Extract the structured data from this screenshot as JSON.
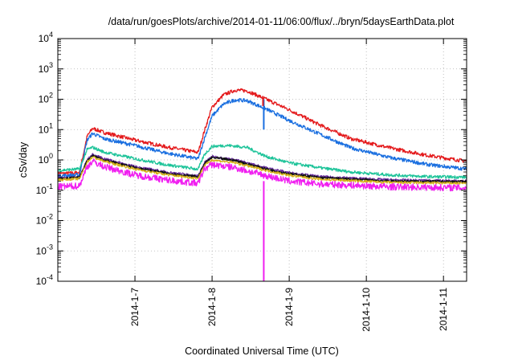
{
  "chart_data": {
    "type": "line",
    "title": "/data/run/goesPlots/archive/2014-01-11/06:00/flux/../bryn/5daysEarthData.plot",
    "xlabel": "Coordinated Universal Time (UTC)",
    "ylabel": "cSv/day",
    "yscale": "log",
    "ylim": [
      0.0001,
      10000
    ],
    "xlim_days": [
      6.0,
      11.3
    ],
    "x_ticks": [
      {
        "day": 7,
        "label": "2014-1-7"
      },
      {
        "day": 8,
        "label": "2014-1-8"
      },
      {
        "day": 9,
        "label": "2014-1-9"
      },
      {
        "day": 10,
        "label": "2014-1-10"
      },
      {
        "day": 11,
        "label": "2014-1-11"
      }
    ],
    "y_ticks": [
      {
        "value": 0.0001,
        "base": "10",
        "exp": "-4"
      },
      {
        "value": 0.001,
        "base": "10",
        "exp": "-3"
      },
      {
        "value": 0.01,
        "base": "10",
        "exp": "-2"
      },
      {
        "value": 0.1,
        "base": "10",
        "exp": "-1"
      },
      {
        "value": 1,
        "base": "10",
        "exp": "0"
      },
      {
        "value": 10,
        "base": "10",
        "exp": "1"
      },
      {
        "value": 100,
        "base": "10",
        "exp": "2"
      },
      {
        "value": 1000,
        "base": "10",
        "exp": "3"
      },
      {
        "value": 10000,
        "base": "10",
        "exp": "4"
      }
    ],
    "grid": true,
    "legend": "none",
    "series": [
      {
        "color": "#e41a1c",
        "noise": 0.06,
        "points": [
          [
            6.0,
            0.35
          ],
          [
            6.28,
            0.38
          ],
          [
            6.38,
            6
          ],
          [
            6.45,
            11
          ],
          [
            6.6,
            8
          ],
          [
            7.0,
            4.5
          ],
          [
            7.4,
            2.7
          ],
          [
            7.8,
            1.8
          ],
          [
            7.82,
            1.8
          ],
          [
            7.9,
            9
          ],
          [
            8.0,
            55
          ],
          [
            8.15,
            140
          ],
          [
            8.3,
            200
          ],
          [
            8.45,
            190
          ],
          [
            8.7,
            100
          ],
          [
            9.0,
            45
          ],
          [
            9.4,
            14
          ],
          [
            9.8,
            5
          ],
          [
            10.3,
            2.5
          ],
          [
            10.8,
            1.4
          ],
          [
            11.3,
            0.9
          ]
        ]
      },
      {
        "color": "#1a6fe0",
        "noise": 0.06,
        "points": [
          [
            6.0,
            0.3
          ],
          [
            6.28,
            0.32
          ],
          [
            6.38,
            4.5
          ],
          [
            6.45,
            7.5
          ],
          [
            6.6,
            5
          ],
          [
            7.0,
            3
          ],
          [
            7.4,
            1.7
          ],
          [
            7.8,
            1.1
          ],
          [
            7.82,
            1.1
          ],
          [
            7.9,
            5
          ],
          [
            8.0,
            28
          ],
          [
            8.15,
            70
          ],
          [
            8.3,
            95
          ],
          [
            8.45,
            90
          ],
          [
            8.7,
            48
          ],
          [
            9.0,
            20
          ],
          [
            9.4,
            7
          ],
          [
            9.8,
            2.5
          ],
          [
            10.3,
            1.2
          ],
          [
            10.8,
            0.7
          ],
          [
            11.3,
            0.5
          ]
        ]
      },
      {
        "color": "#1fc49a",
        "noise": 0.05,
        "points": [
          [
            6.0,
            0.45
          ],
          [
            6.28,
            0.5
          ],
          [
            6.38,
            2.2
          ],
          [
            6.45,
            2.6
          ],
          [
            6.6,
            1.8
          ],
          [
            7.0,
            1.1
          ],
          [
            7.4,
            0.7
          ],
          [
            7.8,
            0.5
          ],
          [
            7.82,
            0.5
          ],
          [
            7.9,
            1.5
          ],
          [
            8.0,
            2.8
          ],
          [
            8.2,
            3.0
          ],
          [
            8.45,
            2.6
          ],
          [
            8.7,
            1.3
          ],
          [
            9.0,
            0.8
          ],
          [
            9.4,
            0.55
          ],
          [
            9.8,
            0.4
          ],
          [
            10.3,
            0.32
          ],
          [
            10.8,
            0.28
          ],
          [
            11.3,
            0.27
          ]
        ]
      },
      {
        "color": "#6a2ea0",
        "noise": 0.04,
        "points": [
          [
            6.0,
            0.25
          ],
          [
            6.28,
            0.27
          ],
          [
            6.38,
            1.0
          ],
          [
            6.45,
            1.5
          ],
          [
            6.6,
            1.1
          ],
          [
            7.0,
            0.6
          ],
          [
            7.4,
            0.4
          ],
          [
            7.8,
            0.3
          ],
          [
            7.82,
            0.3
          ],
          [
            7.9,
            0.8
          ],
          [
            8.0,
            1.3
          ],
          [
            8.3,
            1.0
          ],
          [
            8.7,
            0.55
          ],
          [
            9.0,
            0.38
          ],
          [
            9.4,
            0.28
          ],
          [
            10.3,
            0.22
          ],
          [
            11.3,
            0.2
          ]
        ]
      },
      {
        "color": "#111111",
        "noise": 0.04,
        "points": [
          [
            6.0,
            0.24
          ],
          [
            6.28,
            0.26
          ],
          [
            6.38,
            0.95
          ],
          [
            6.45,
            1.4
          ],
          [
            6.6,
            1.0
          ],
          [
            7.0,
            0.55
          ],
          [
            7.4,
            0.37
          ],
          [
            7.8,
            0.28
          ],
          [
            7.82,
            0.28
          ],
          [
            7.9,
            0.75
          ],
          [
            8.0,
            1.2
          ],
          [
            8.3,
            0.95
          ],
          [
            8.7,
            0.5
          ],
          [
            9.0,
            0.35
          ],
          [
            9.4,
            0.26
          ],
          [
            10.3,
            0.2
          ],
          [
            11.3,
            0.19
          ]
        ]
      },
      {
        "color": "#d4b01a",
        "noise": 0.04,
        "points": [
          [
            6.0,
            0.22
          ],
          [
            6.28,
            0.24
          ],
          [
            6.38,
            0.85
          ],
          [
            6.45,
            1.25
          ],
          [
            6.6,
            0.9
          ],
          [
            7.0,
            0.5
          ],
          [
            7.4,
            0.33
          ],
          [
            7.8,
            0.25
          ],
          [
            7.82,
            0.25
          ],
          [
            7.9,
            0.65
          ],
          [
            8.0,
            1.0
          ],
          [
            8.3,
            0.8
          ],
          [
            8.7,
            0.45
          ],
          [
            9.0,
            0.31
          ],
          [
            9.4,
            0.23
          ],
          [
            10.3,
            0.18
          ],
          [
            11.3,
            0.17
          ]
        ]
      },
      {
        "color": "#f01ff0",
        "noise": 0.11,
        "points": [
          [
            6.0,
            0.13
          ],
          [
            6.28,
            0.14
          ],
          [
            6.38,
            0.6
          ],
          [
            6.45,
            0.9
          ],
          [
            6.6,
            0.6
          ],
          [
            7.0,
            0.32
          ],
          [
            7.4,
            0.22
          ],
          [
            7.8,
            0.17
          ],
          [
            7.82,
            0.17
          ],
          [
            7.9,
            0.5
          ],
          [
            8.0,
            0.7
          ],
          [
            8.3,
            0.55
          ],
          [
            8.7,
            0.3
          ],
          [
            9.0,
            0.2
          ],
          [
            9.4,
            0.16
          ],
          [
            10.3,
            0.13
          ],
          [
            11.3,
            0.12
          ]
        ]
      }
    ],
    "annotations": [
      {
        "type": "vline",
        "color": "#1a6fe0",
        "x": 8.67,
        "y_from": 10,
        "y_to": 100
      },
      {
        "type": "vline",
        "color": "#f01ff0",
        "x": 8.67,
        "y_from": 0.0001,
        "y_to": 0.2
      },
      {
        "type": "vline",
        "color": "#e41a1c",
        "x": 8.66,
        "y_from": 60,
        "y_to": 110
      }
    ]
  }
}
